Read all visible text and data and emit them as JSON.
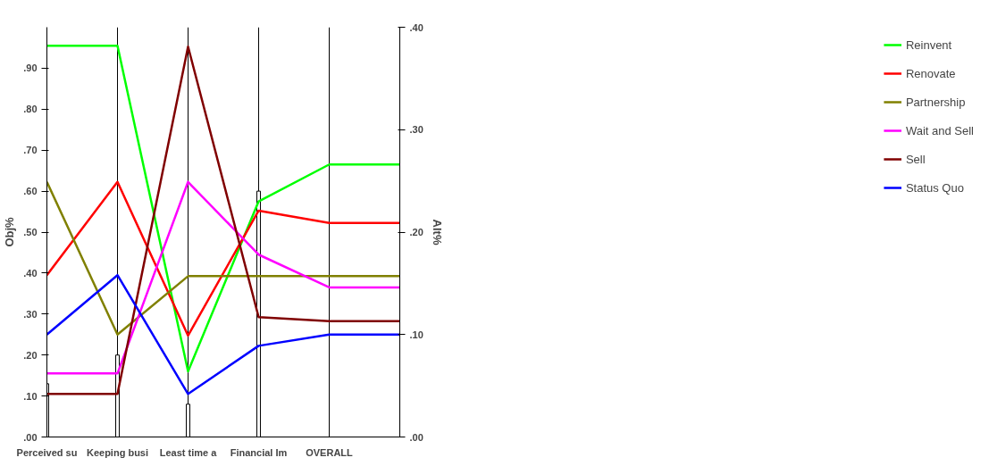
{
  "chart_data": {
    "type": "line",
    "ylabel": "Obj%",
    "y2label": "Alt%",
    "categories": [
      "Perceived su",
      "Keeping busi",
      "Least time a",
      "Financial Im",
      "OVERALL",
      null
    ],
    "ylim": [
      0,
      1.0
    ],
    "yticks": [
      {
        "value": 0,
        "label": ".00"
      },
      {
        "value": 0.1,
        "label": ".10"
      },
      {
        "value": 0.2,
        "label": ".20"
      },
      {
        "value": 0.3,
        "label": ".30"
      },
      {
        "value": 0.4,
        "label": ".40"
      },
      {
        "value": 0.5,
        "label": ".50"
      },
      {
        "value": 0.6,
        "label": ".60"
      },
      {
        "value": 0.7,
        "label": ".70"
      },
      {
        "value": 0.8,
        "label": ".80"
      },
      {
        "value": 0.9,
        "label": ".90"
      }
    ],
    "y2lim": [
      0,
      0.4
    ],
    "y2ticks": [
      {
        "value": 0,
        "label": ".00"
      },
      {
        "value": 0.1,
        "label": ".10"
      },
      {
        "value": 0.2,
        "label": ".20"
      },
      {
        "value": 0.3,
        "label": ".30"
      },
      {
        "value": 0.4,
        "label": ".40"
      }
    ],
    "grid": "x",
    "legend": "right",
    "series": [
      {
        "type": "bar",
        "color": "#ffffff",
        "values": [
          0.13,
          0.2,
          0.08,
          0.6,
          null,
          null
        ]
      },
      {
        "name": "Reinvent",
        "color": "#00ff00",
        "axis": "y2",
        "values": [
          0.382,
          0.382,
          0.064,
          0.23,
          0.266,
          0.266
        ]
      },
      {
        "name": "Renovate",
        "color": "#ff0000",
        "axis": "y2",
        "values": [
          0.158,
          0.249,
          0.099,
          0.221,
          0.209,
          0.209
        ]
      },
      {
        "name": "Partnership",
        "color": "#808000",
        "axis": "y2",
        "values": [
          0.249,
          0.1,
          0.157,
          0.157,
          0.157,
          0.157
        ]
      },
      {
        "name": "Wait and Sell",
        "color": "#ff00ff",
        "axis": "y2",
        "values": [
          0.062,
          0.062,
          0.249,
          0.178,
          0.146,
          0.146
        ]
      },
      {
        "name": "Sell",
        "color": "#800000",
        "axis": "y2",
        "values": [
          0.042,
          0.042,
          0.381,
          0.117,
          0.113,
          0.113
        ]
      },
      {
        "name": "Status Quo",
        "color": "#0000ff",
        "axis": "y2",
        "values": [
          0.1,
          0.158,
          0.042,
          0.089,
          0.1,
          0.1
        ]
      }
    ]
  }
}
